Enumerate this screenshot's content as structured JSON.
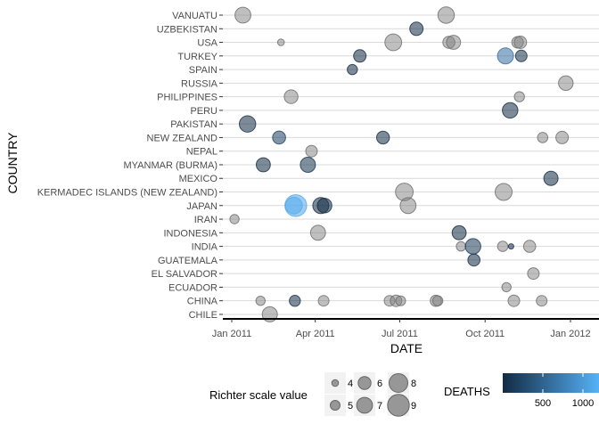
{
  "chart_data": {
    "type": "scatter",
    "xlabel": "DATE",
    "ylabel": "COUNTRY",
    "x_ticks": [
      "Jan 2011",
      "Apr 2011",
      "Jul 2011",
      "Oct 2011",
      "Jan 2012"
    ],
    "xlim": [
      "2010-12-28",
      "2012-01-08"
    ],
    "categories": [
      "VANUATU",
      "UZBEKISTAN",
      "USA",
      "TURKEY",
      "SPAIN",
      "RUSSIA",
      "PHILIPPINES",
      "PERU",
      "PAKISTAN",
      "NEW ZEALAND",
      "NEPAL",
      "MYANMAR (BURMA)",
      "MEXICO",
      "KERMADEC ISLANDS (NEW ZEALAND)",
      "JAPAN",
      "IRAN",
      "INDONESIA",
      "INDIA",
      "GUATEMALA",
      "EL SALVADOR",
      "ECUADOR",
      "CHINA",
      "CHILE"
    ],
    "size_legend": {
      "title": "Richter scale value",
      "values": [
        4,
        5,
        6,
        7,
        8,
        9
      ]
    },
    "color_legend": {
      "title": "DEATHS",
      "ticks": [
        500,
        1000
      ],
      "low": "#132b43",
      "high": "#56b1f7",
      "limits": [
        0,
        1200
      ]
    },
    "points": [
      {
        "country": "VANUATU",
        "date": "2011-01-13",
        "mag": 7.0
      },
      {
        "country": "VANUATU",
        "date": "2011-08-20",
        "mag": 7.2
      },
      {
        "country": "UZBEKISTAN",
        "date": "2011-07-19",
        "mag": 6.2,
        "deaths": 13
      },
      {
        "country": "USA",
        "date": "2011-02-23",
        "mag": 4.0
      },
      {
        "country": "USA",
        "date": "2011-06-24",
        "mag": 7.3
      },
      {
        "country": "USA",
        "date": "2011-08-23",
        "mag": 5.8
      },
      {
        "country": "USA",
        "date": "2011-08-28",
        "mag": 6.4
      },
      {
        "country": "USA",
        "date": "2011-11-05",
        "mag": 5.6
      },
      {
        "country": "USA",
        "date": "2011-11-08",
        "mag": 5.9
      },
      {
        "country": "TURKEY",
        "date": "2011-05-19",
        "mag": 5.9,
        "deaths": 3
      },
      {
        "country": "TURKEY",
        "date": "2011-10-23",
        "mag": 7.1,
        "deaths": 604
      },
      {
        "country": "TURKEY",
        "date": "2011-11-09",
        "mag": 5.6,
        "deaths": 40
      },
      {
        "country": "SPAIN",
        "date": "2011-05-11",
        "mag": 5.1,
        "deaths": 9
      },
      {
        "country": "RUSSIA",
        "date": "2011-12-27",
        "mag": 6.6
      },
      {
        "country": "PHILIPPINES",
        "date": "2011-03-06",
        "mag": 6.3
      },
      {
        "country": "PHILIPPINES",
        "date": "2011-11-07",
        "mag": 5.1
      },
      {
        "country": "PERU",
        "date": "2011-10-28",
        "mag": 6.9,
        "deaths": 1
      },
      {
        "country": "PAKISTAN",
        "date": "2011-01-18",
        "mag": 7.2,
        "deaths": 3
      },
      {
        "country": "NEW ZEALAND",
        "date": "2011-02-21",
        "mag": 6.1,
        "deaths": 181
      },
      {
        "country": "NEW ZEALAND",
        "date": "2011-06-13",
        "mag": 6.0,
        "deaths": 1
      },
      {
        "country": "NEW ZEALAND",
        "date": "2011-12-02",
        "mag": 5.2
      },
      {
        "country": "NEW ZEALAND",
        "date": "2011-12-23",
        "mag": 5.9
      },
      {
        "country": "NEPAL",
        "date": "2011-03-28",
        "mag": 5.6
      },
      {
        "country": "MYANMAR (BURMA)",
        "date": "2011-02-04",
        "mag": 6.4,
        "deaths": 1
      },
      {
        "country": "MYANMAR (BURMA)",
        "date": "2011-03-24",
        "mag": 6.8,
        "deaths": 74
      },
      {
        "country": "MEXICO",
        "date": "2011-12-11",
        "mag": 6.5,
        "deaths": 2
      },
      {
        "country": "KERMADEC ISLANDS (NEW ZEALAND)",
        "date": "2011-07-06",
        "mag": 7.6
      },
      {
        "country": "KERMADEC ISLANDS (NEW ZEALAND)",
        "date": "2011-10-21",
        "mag": 7.4
      },
      {
        "country": "JAPAN",
        "date": "2011-03-09",
        "mag": 7.3,
        "deaths": 1200
      },
      {
        "country": "JAPAN",
        "date": "2011-03-11",
        "mag": 9.0,
        "deaths": 1100
      },
      {
        "country": "JAPAN",
        "date": "2011-04-07",
        "mag": 7.1,
        "deaths": 4
      },
      {
        "country": "JAPAN",
        "date": "2011-04-11",
        "mag": 6.6,
        "deaths": 6
      },
      {
        "country": "JAPAN",
        "date": "2011-07-10",
        "mag": 7.0
      },
      {
        "country": "IRAN",
        "date": "2011-01-04",
        "mag": 4.8
      },
      {
        "country": "INDONESIA",
        "date": "2011-04-04",
        "mag": 6.7
      },
      {
        "country": "INDONESIA",
        "date": "2011-09-03",
        "mag": 6.4,
        "deaths": 2
      },
      {
        "country": "INDIA",
        "date": "2011-09-05",
        "mag": 4.9
      },
      {
        "country": "INDIA",
        "date": "2011-09-18",
        "mag": 6.9,
        "deaths": 112
      },
      {
        "country": "INDIA",
        "date": "2011-10-20",
        "mag": 5.2
      },
      {
        "country": "INDIA",
        "date": "2011-10-29",
        "mag": 3.5,
        "deaths": 1
      },
      {
        "country": "INDIA",
        "date": "2011-11-18",
        "mag": 5.8
      },
      {
        "country": "GUATEMALA",
        "date": "2011-09-19",
        "mag": 5.8,
        "deaths": 3
      },
      {
        "country": "EL SALVADOR",
        "date": "2011-11-22",
        "mag": 5.6
      },
      {
        "country": "ECUADOR",
        "date": "2011-10-24",
        "mag": 4.8
      },
      {
        "country": "CHINA",
        "date": "2011-02-01",
        "mag": 4.8
      },
      {
        "country": "CHINA",
        "date": "2011-03-10",
        "mag": 5.4,
        "deaths": 25
      },
      {
        "country": "CHINA",
        "date": "2011-04-10",
        "mag": 5.3
      },
      {
        "country": "CHINA",
        "date": "2011-06-20",
        "mag": 5.3
      },
      {
        "country": "CHINA",
        "date": "2011-06-27",
        "mag": 5.6
      },
      {
        "country": "CHINA",
        "date": "2011-07-02",
        "mag": 5.0
      },
      {
        "country": "CHINA",
        "date": "2011-08-09",
        "mag": 5.5
      },
      {
        "country": "CHINA",
        "date": "2011-08-11",
        "mag": 5.1
      },
      {
        "country": "CHINA",
        "date": "2011-11-01",
        "mag": 5.6
      },
      {
        "country": "CHINA",
        "date": "2011-12-01",
        "mag": 5.3
      },
      {
        "country": "CHILE",
        "date": "2011-02-11",
        "mag": 6.8
      }
    ]
  }
}
